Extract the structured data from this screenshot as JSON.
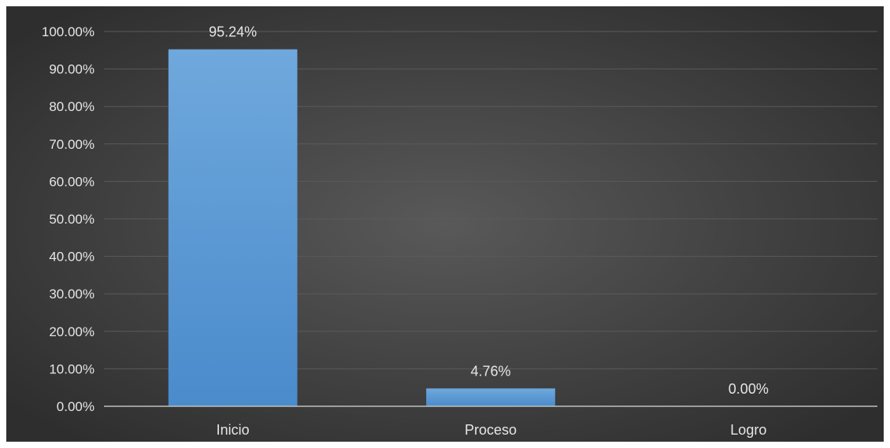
{
  "chart_data": {
    "type": "bar",
    "categories": [
      "Inicio",
      "Proceso",
      "Logro"
    ],
    "values": [
      95.24,
      4.76,
      0.0
    ],
    "data_labels": [
      "95.24%",
      "4.76%",
      "0.00%"
    ],
    "yticks": [
      0,
      10,
      20,
      30,
      40,
      50,
      60,
      70,
      80,
      90,
      100
    ],
    "ytick_labels": [
      "0.00%",
      "10.00%",
      "20.00%",
      "30.00%",
      "40.00%",
      "50.00%",
      "60.00%",
      "70.00%",
      "80.00%",
      "90.00%",
      "100.00%"
    ],
    "ylim": [
      0,
      100
    ],
    "title": "",
    "xlabel": "",
    "ylabel": "",
    "grid": true,
    "legend": "none",
    "colors": {
      "background": "#3f3f3f",
      "bar": "#5b9bd5",
      "text": "#e6e6e6",
      "gridline": "#5a5a5a"
    }
  }
}
